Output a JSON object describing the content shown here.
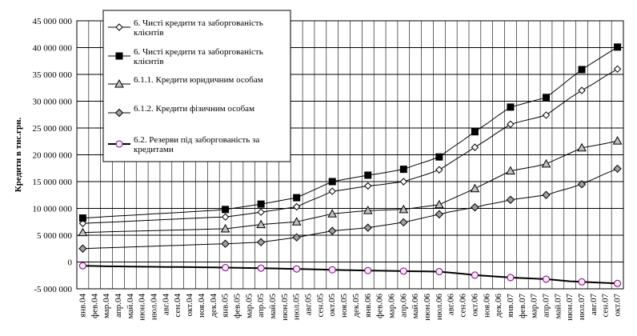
{
  "chart_data": {
    "type": "line",
    "title": "",
    "xlabel": "",
    "ylabel": "Кредити в тис.грн.",
    "ylim": [
      -5000000,
      45000000
    ],
    "yticks": [
      -5000000,
      0,
      5000000,
      10000000,
      15000000,
      20000000,
      25000000,
      30000000,
      35000000,
      40000000,
      45000000
    ],
    "ytick_labels": [
      "-5 000 000",
      "0",
      "5 000 000",
      "10 000 000",
      "15 000 000",
      "20 000 000",
      "25 000 000",
      "30 000 000",
      "35 000 000",
      "40 000 000",
      "45 000 000"
    ],
    "grid": true,
    "legend_position": "top-left",
    "categories": [
      "янв.04",
      "фев.04",
      "мар.04",
      "апр.04",
      "май.04",
      "июн.04",
      "июл.04",
      "авг.04",
      "сен.04",
      "окт.04",
      "ноя.04",
      "дек.04",
      "янв.05",
      "фев.05",
      "мар.05",
      "апр.05",
      "май.05",
      "июн.05",
      "июл.05",
      "авг.05",
      "сен.05",
      "окт.05",
      "ноя.05",
      "дек.05",
      "янв.06",
      "фев.06",
      "мар.06",
      "апр.06",
      "май.06",
      "июн.06",
      "июл.06",
      "авг.06",
      "сен.06",
      "окт.06",
      "ноя.06",
      "дек.06",
      "янв.07",
      "фев.07",
      "мар.07",
      "апр.07",
      "май.07",
      "июн.07",
      "июл.07",
      "авг.07",
      "сен.07",
      "окт.07"
    ],
    "series": [
      {
        "name": "6. Чисті кредити та заборгованість клієнтів",
        "color": "#000000",
        "marker": "diamond-open",
        "line_width": 1,
        "values": [
          7200000,
          7310000,
          7410000,
          7510000,
          7610000,
          7720000,
          7820000,
          7920000,
          8030000,
          8130000,
          8230000,
          8340000,
          8400000,
          8700000,
          9000000,
          9300000,
          9620000,
          9960000,
          10300000,
          11300000,
          12200000,
          13200000,
          13500000,
          13850000,
          14200000,
          14400000,
          14700000,
          15000000,
          15700000,
          16400000,
          17200000,
          18600000,
          20000000,
          21400000,
          22800000,
          24300000,
          25700000,
          26300000,
          26800000,
          27400000,
          29000000,
          30600000,
          32000000,
          33300000,
          34700000,
          36000000
        ],
        "markers_at": [
          0,
          12,
          15,
          18,
          21,
          24,
          27,
          30,
          33,
          36,
          39,
          42,
          45
        ]
      },
      {
        "name": "6. Чисті кредити та заборгованість клієнтів",
        "color": "#000000",
        "marker": "square-filled",
        "line_width": 1,
        "values": [
          8200000,
          8330000,
          8460000,
          8590000,
          8720000,
          8850000,
          8980000,
          9100000,
          9230000,
          9360000,
          9490000,
          9620000,
          9800000,
          10130000,
          10470000,
          10800000,
          11200000,
          11600000,
          12000000,
          13000000,
          14000000,
          15000000,
          15400000,
          15800000,
          16200000,
          16500000,
          16900000,
          17300000,
          18100000,
          18800000,
          19600000,
          21200000,
          22700000,
          24300000,
          25800000,
          27400000,
          28900000,
          29500000,
          30100000,
          30700000,
          32400000,
          34200000,
          35900000,
          37300000,
          38700000,
          40100000
        ],
        "markers_at": [
          0,
          12,
          15,
          18,
          21,
          24,
          27,
          30,
          33,
          36,
          39,
          42,
          45
        ]
      },
      {
        "name": "6.1.1. Кредити юридичним особам",
        "color": "#000000",
        "marker": "triangle-gray",
        "line_width": 1,
        "values": [
          5500000,
          5560000,
          5620000,
          5680000,
          5740000,
          5800000,
          5860000,
          5910000,
          5970000,
          6030000,
          6090000,
          6150000,
          6200000,
          6470000,
          6730000,
          7000000,
          7170000,
          7330000,
          7500000,
          8000000,
          8500000,
          9000000,
          9200000,
          9400000,
          9600000,
          9670000,
          9730000,
          9800000,
          10100000,
          10400000,
          10700000,
          11700000,
          12700000,
          13700000,
          14800000,
          15900000,
          17000000,
          17400000,
          17800000,
          18300000,
          19300000,
          20300000,
          21300000,
          21700000,
          22100000,
          22600000
        ],
        "markers_at": [
          0,
          12,
          15,
          18,
          21,
          24,
          27,
          30,
          33,
          36,
          39,
          42,
          45
        ]
      },
      {
        "name": "6.1.2. Кредити фізичним особам",
        "color": "#000000",
        "marker": "diamond-gray",
        "line_width": 1,
        "values": [
          2500000,
          2580000,
          2650000,
          2730000,
          2810000,
          2880000,
          2960000,
          3040000,
          3110000,
          3190000,
          3270000,
          3340000,
          3400000,
          3500000,
          3600000,
          3700000,
          4000000,
          4300000,
          4600000,
          5000000,
          5400000,
          5800000,
          6000000,
          6200000,
          6400000,
          6730000,
          7070000,
          7400000,
          7900000,
          8400000,
          8900000,
          9400000,
          9800000,
          10200000,
          10700000,
          11100000,
          11600000,
          11900000,
          12200000,
          12500000,
          13200000,
          13800000,
          14500000,
          15500000,
          16500000,
          17400000
        ],
        "markers_at": [
          0,
          12,
          15,
          18,
          21,
          24,
          27,
          30,
          33,
          36,
          39,
          42,
          45
        ]
      },
      {
        "name": "6.2. Резерви під заборгованість за кредитами",
        "color": "#000000",
        "marker": "circle-pink",
        "line_width": 2,
        "values": [
          -700000,
          -750000,
          -800000,
          -820000,
          -850000,
          -880000,
          -900000,
          -920000,
          -940000,
          -960000,
          -980000,
          -1000000,
          -1050000,
          -1080000,
          -1120000,
          -1150000,
          -1200000,
          -1250000,
          -1300000,
          -1350000,
          -1400000,
          -1450000,
          -1500000,
          -1550000,
          -1600000,
          -1620000,
          -1650000,
          -1700000,
          -1730000,
          -1760000,
          -1800000,
          -2000000,
          -2200000,
          -2450000,
          -2600000,
          -2750000,
          -2900000,
          -3000000,
          -3100000,
          -3200000,
          -3400000,
          -3600000,
          -3700000,
          -3800000,
          -3900000,
          -4000000
        ],
        "markers_at": [
          0,
          12,
          15,
          18,
          21,
          24,
          27,
          30,
          33,
          36,
          39,
          42,
          45
        ]
      }
    ],
    "legend": [
      {
        "lines": [
          "6. Чисті кредити та заборгованість",
          "клієнтів"
        ],
        "marker": "diamond-open"
      },
      {
        "lines": [
          "6. Чисті кредити та заборгованість",
          "клієнтів"
        ],
        "marker": "square-filled"
      },
      {
        "lines": [
          "6.1.1. Кредити юридичним особам"
        ],
        "marker": "triangle-gray"
      },
      {
        "lines": [
          "6.1.2. Кредити фізичним особам"
        ],
        "marker": "diamond-gray"
      },
      {
        "lines": [
          "6.2. Резерви під заборгованість за",
          "кредитами"
        ],
        "marker": "circle-pink"
      }
    ]
  }
}
